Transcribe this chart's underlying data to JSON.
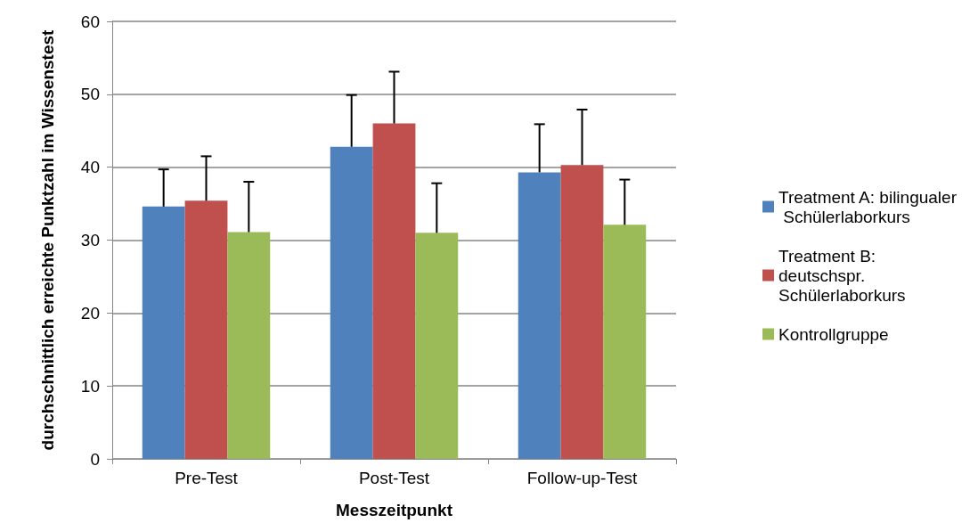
{
  "chart_data": {
    "type": "bar",
    "xlabel": "Messzeitpunkt",
    "ylabel": "durchschnittlich erreichte Punktzahl im Wissenstest",
    "categories": [
      "Pre-Test",
      "Post-Test",
      "Follow-up-Test"
    ],
    "series": [
      {
        "name": "Treatment A: bilingualer Schülerlaborkurs",
        "color": "#4f81bd",
        "values": [
          34.6,
          42.8,
          39.3
        ],
        "errors": [
          [
            34.6,
            39.7
          ],
          [
            42.8,
            49.9
          ],
          [
            39.3,
            45.9
          ]
        ]
      },
      {
        "name": "Treatment B: deutschspr. Schülerlaborkurs",
        "color": "#c0504d",
        "values": [
          35.4,
          46.0,
          40.3
        ],
        "errors": [
          [
            35.4,
            41.5
          ],
          [
            46.0,
            53.1
          ],
          [
            40.3,
            47.9
          ]
        ]
      },
      {
        "name": "Kontrollgruppe",
        "color": "#9bbb59",
        "values": [
          31.1,
          31.0,
          32.1
        ],
        "errors": [
          [
            31.1,
            38.0
          ],
          [
            31.0,
            37.8
          ],
          [
            32.1,
            38.3
          ]
        ]
      }
    ],
    "ylim": [
      0,
      60
    ],
    "yticks": [
      0,
      10,
      20,
      30,
      40,
      50,
      60
    ],
    "grid": "y",
    "legend": "right"
  }
}
